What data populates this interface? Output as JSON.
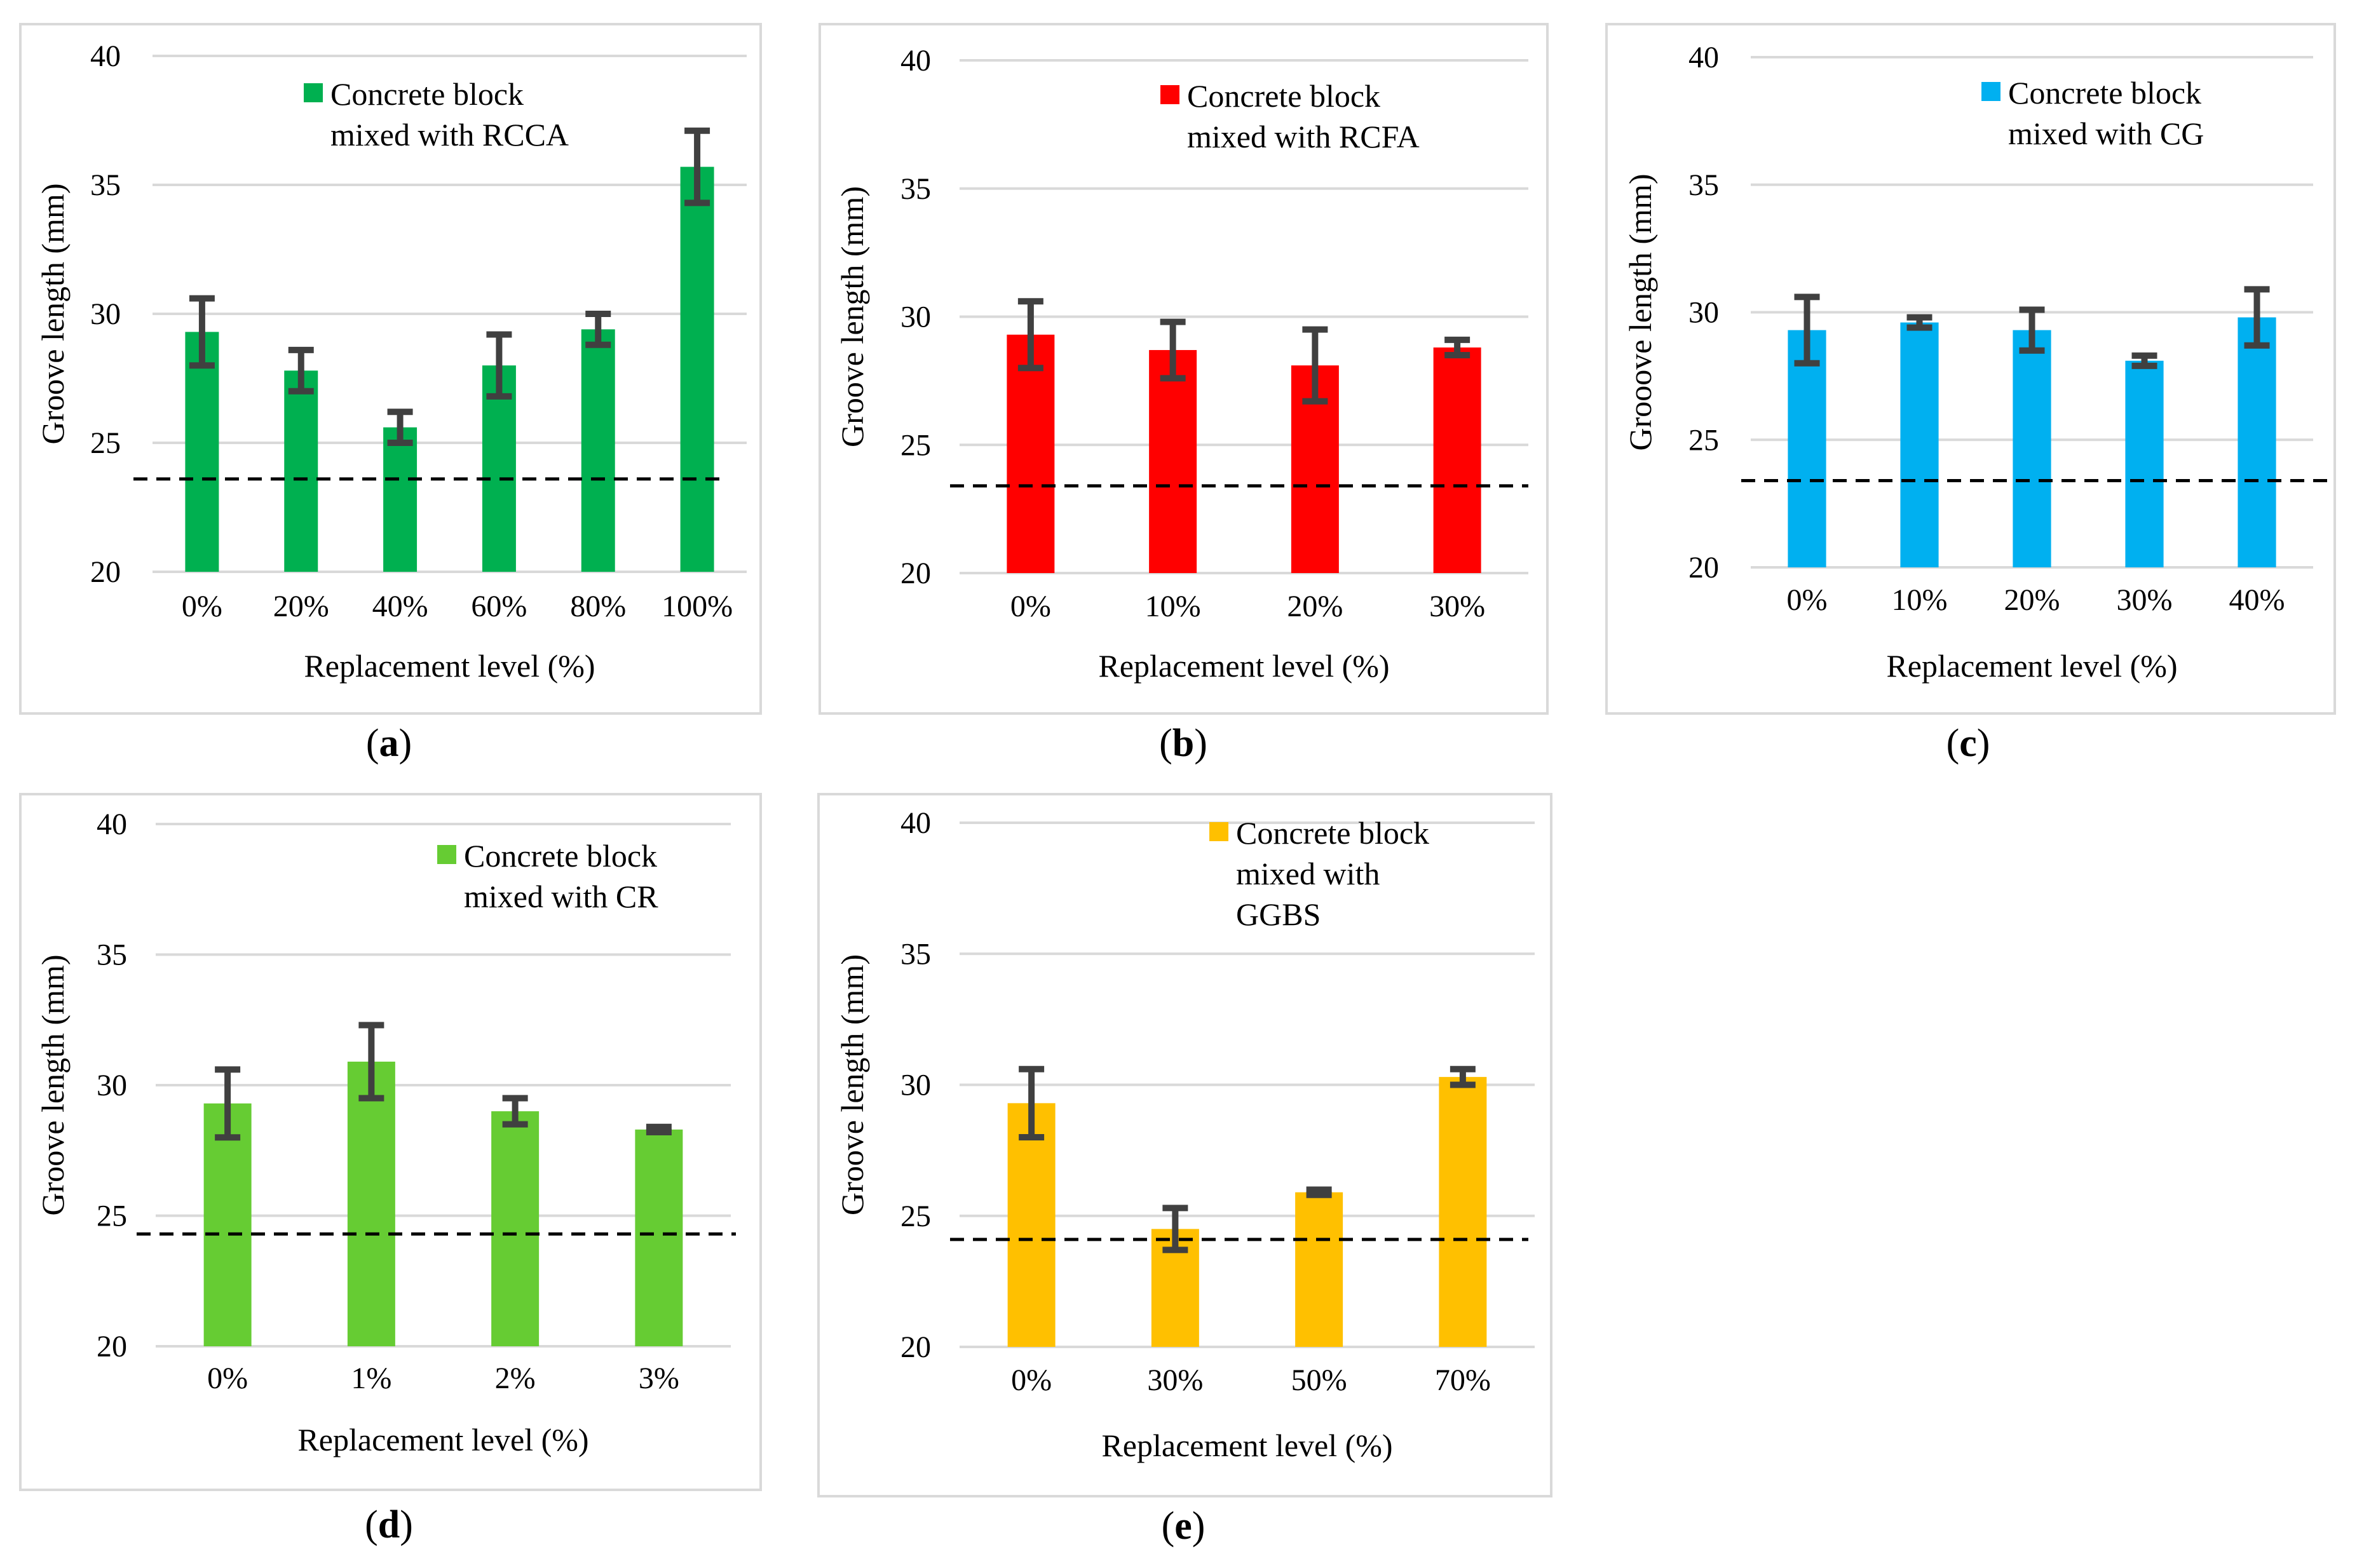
{
  "chart_data": [
    {
      "id": "a",
      "type": "bar",
      "caption": "a",
      "color": "#00B050",
      "legend": [
        "Concrete block",
        "mixed with RCCA"
      ],
      "categories": [
        "0%",
        "20%",
        "40%",
        "60%",
        "80%",
        "100%"
      ],
      "values": [
        29.3,
        27.8,
        25.6,
        28.0,
        29.4,
        35.7
      ],
      "errors": [
        1.3,
        0.8,
        0.6,
        1.2,
        0.6,
        1.4
      ],
      "reference_line": 23.6,
      "ylim": [
        20,
        40
      ],
      "yticks": [
        "20",
        "25",
        "30",
        "35",
        "40"
      ],
      "xlabel": "Replacement level (%)",
      "ylabel": "Groove length (mm)"
    },
    {
      "id": "b",
      "type": "bar",
      "caption": "b",
      "color": "#FF0000",
      "legend": [
        "Concrete block",
        "mixed with RCFA"
      ],
      "categories": [
        "0%",
        "10%",
        "20%",
        "30%"
      ],
      "values": [
        29.3,
        28.7,
        28.1,
        28.8
      ],
      "errors": [
        1.3,
        1.1,
        1.4,
        0.3
      ],
      "reference_line": 23.4,
      "ylim": [
        20,
        40
      ],
      "yticks": [
        "20",
        "25",
        "30",
        "35",
        "40"
      ],
      "xlabel": "Replacement level (%)",
      "ylabel": "Groove length (mm)"
    },
    {
      "id": "c",
      "type": "bar",
      "caption": "c",
      "color": "#00B0F0",
      "legend": [
        "Concrete block",
        "mixed with CG"
      ],
      "categories": [
        "0%",
        "10%",
        "20%",
        "30%",
        "40%"
      ],
      "values": [
        29.3,
        29.6,
        29.3,
        28.1,
        29.8
      ],
      "errors": [
        1.3,
        0.2,
        0.8,
        0.2,
        1.1
      ],
      "reference_line": 23.4,
      "ylim": [
        20,
        40
      ],
      "yticks": [
        "20",
        "25",
        "30",
        "35",
        "40"
      ],
      "xlabel": "Replacement level (%)",
      "ylabel": "Grooove length (mm)"
    },
    {
      "id": "d",
      "type": "bar",
      "caption": "d",
      "color": "#66CC33",
      "legend": [
        "Concrete block",
        "mixed with CR"
      ],
      "categories": [
        "0%",
        "1%",
        "2%",
        "3%"
      ],
      "values": [
        29.3,
        30.9,
        29.0,
        28.3
      ],
      "errors": [
        1.3,
        1.4,
        0.5,
        0.1
      ],
      "reference_line": 24.3,
      "ylim": [
        20,
        40
      ],
      "yticks": [
        "20",
        "25",
        "30",
        "35",
        "40"
      ],
      "xlabel": "Replacement level (%)",
      "ylabel": "Groove length (mm)"
    },
    {
      "id": "e",
      "type": "bar",
      "caption": "e",
      "color": "#FFC000",
      "legend": [
        "Concrete block",
        "mixed with",
        "GGBS"
      ],
      "categories": [
        "0%",
        "30%",
        "50%",
        "70%"
      ],
      "values": [
        29.3,
        24.5,
        25.9,
        30.3
      ],
      "errors": [
        1.3,
        0.8,
        0.1,
        0.3
      ],
      "reference_line": 24.1,
      "ylim": [
        20,
        40
      ],
      "yticks": [
        "20",
        "25",
        "30",
        "35",
        "40"
      ],
      "xlabel": "Replacement level (%)",
      "ylabel": "Groove length (mm)"
    }
  ]
}
